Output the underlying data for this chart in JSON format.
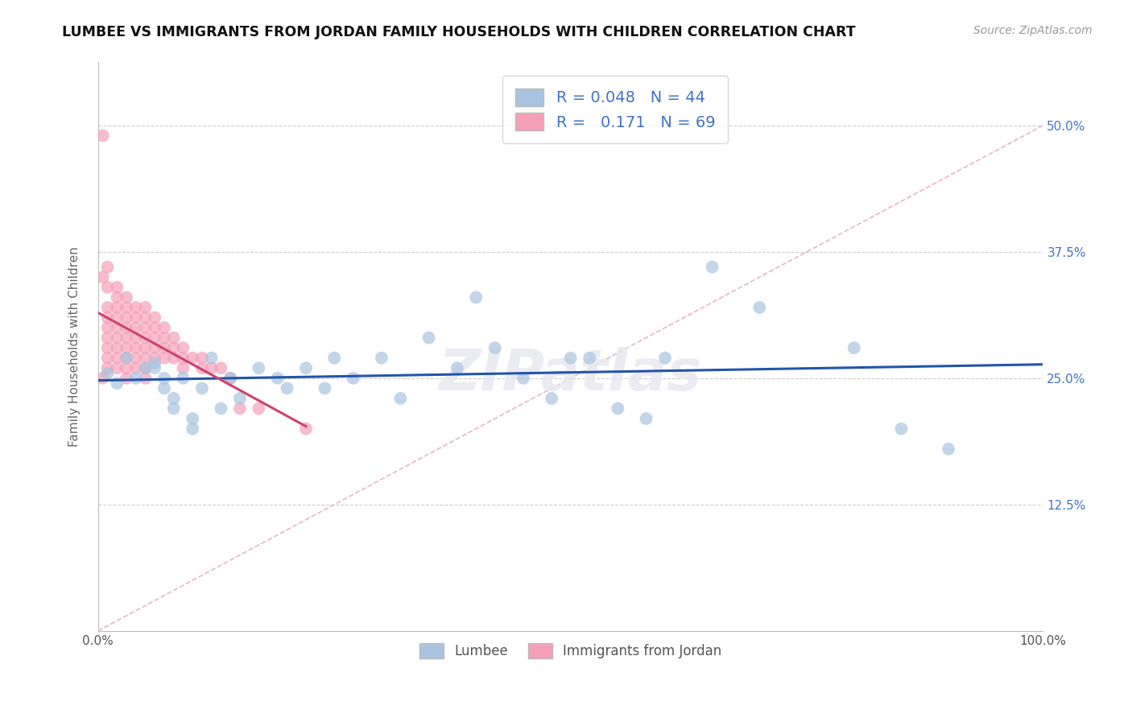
{
  "title": "LUMBEE VS IMMIGRANTS FROM JORDAN FAMILY HOUSEHOLDS WITH CHILDREN CORRELATION CHART",
  "source": "Source: ZipAtlas.com",
  "ylabel": "Family Households with Children",
  "xlim": [
    0,
    100
  ],
  "ylim": [
    0,
    56.25
  ],
  "yticks": [
    0,
    12.5,
    25,
    37.5,
    50
  ],
  "yticklabels_right": [
    "",
    "12.5%",
    "25.0%",
    "37.5%",
    "50.0%"
  ],
  "lumbee_R": 0.048,
  "lumbee_N": 44,
  "jordan_R": 0.171,
  "jordan_N": 69,
  "lumbee_color": "#a8c4e0",
  "jordan_color": "#f4a0b8",
  "lumbee_line_color": "#2255aa",
  "jordan_line_color": "#d04070",
  "diagonal_color": "#e0b0c0",
  "background_color": "#ffffff",
  "grid_color": "#cccccc",
  "lumbee_x": [
    1,
    2,
    3,
    4,
    5,
    6,
    7,
    8,
    9,
    10,
    11,
    12,
    13,
    14,
    15,
    17,
    19,
    20,
    22,
    24,
    25,
    27,
    30,
    32,
    35,
    38,
    40,
    42,
    45,
    48,
    50,
    52,
    55,
    58,
    60,
    65,
    70,
    80,
    85,
    90,
    6,
    7,
    8,
    10
  ],
  "lumbee_y": [
    25.5,
    24.5,
    27,
    25,
    26,
    26.5,
    25,
    23,
    25,
    21,
    24,
    27,
    22,
    25,
    23,
    26,
    25,
    24,
    26,
    24,
    27,
    25,
    27,
    23,
    29,
    26,
    33,
    28,
    25,
    23,
    27,
    27,
    22,
    21,
    27,
    36,
    32,
    28,
    20,
    18,
    26,
    24,
    22,
    20
  ],
  "jordan_x": [
    0.5,
    0.5,
    0.5,
    1,
    1,
    1,
    1,
    1,
    1,
    1,
    1,
    1,
    2,
    2,
    2,
    2,
    2,
    2,
    2,
    2,
    2,
    3,
    3,
    3,
    3,
    3,
    3,
    3,
    3,
    3,
    4,
    4,
    4,
    4,
    4,
    4,
    4,
    5,
    5,
    5,
    5,
    5,
    5,
    5,
    5,
    6,
    6,
    6,
    6,
    6,
    7,
    7,
    7,
    7,
    8,
    8,
    8,
    9,
    9,
    9,
    10,
    11,
    11,
    12,
    13,
    14,
    15,
    17,
    22
  ],
  "jordan_y": [
    49,
    35,
    25,
    36,
    34,
    32,
    31,
    30,
    29,
    28,
    27,
    26,
    34,
    33,
    32,
    31,
    30,
    29,
    28,
    27,
    26,
    33,
    32,
    31,
    30,
    29,
    28,
    27,
    26,
    25,
    32,
    31,
    30,
    29,
    28,
    27,
    26,
    32,
    31,
    30,
    29,
    28,
    27,
    26,
    25,
    31,
    30,
    29,
    28,
    27,
    30,
    29,
    28,
    27,
    29,
    28,
    27,
    28,
    27,
    26,
    27,
    27,
    26,
    26,
    26,
    25,
    22,
    22,
    20
  ]
}
